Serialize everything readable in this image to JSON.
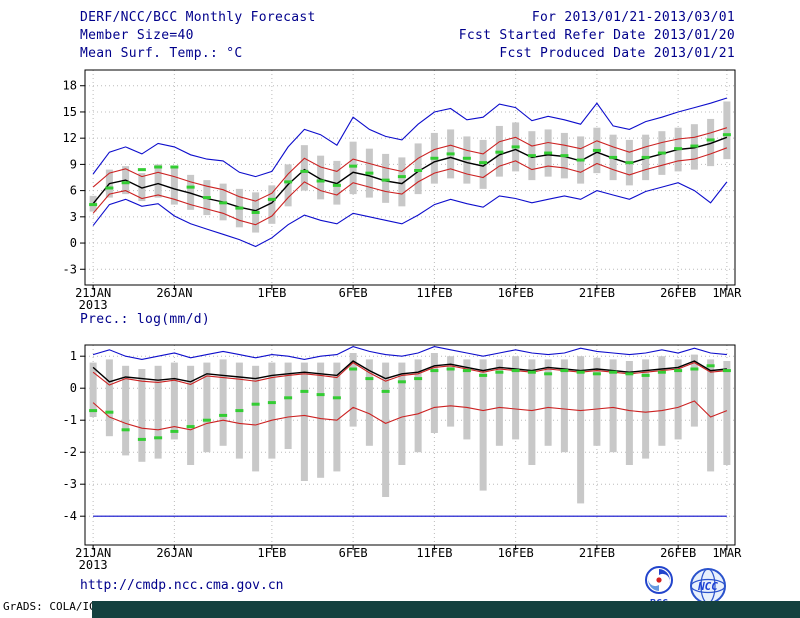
{
  "header": {
    "title": "DERF/NCC/BCC Monthly Forecast",
    "member_size": "Member Size=40",
    "temp_label": "Mean Surf. Temp.: °C",
    "date_range": "For 2013/01/21-2013/03/01",
    "fcst_started": "Fcst Started Refer Date 2013/01/20",
    "fcst_produced": "Fcst Produced Date 2013/01/21"
  },
  "prec_label": "Prec.: log(mm/d)",
  "footer": {
    "url": "http://cmdp.ncc.cma.gov.cn",
    "grads_credit": "GrADS: COLA/IGES",
    "bcc_logo_label": "BCC",
    "ncc_logo_label": "NCC"
  },
  "colors": {
    "envelope": "#0d0dcc",
    "quartile": "#cc2222",
    "mean": "#000000",
    "median": "#33cc33",
    "spread_bar": "#c8c8c8",
    "grid": "#bbbbbb",
    "text": "#00008b"
  },
  "chart_data": [
    {
      "id": "temperature",
      "type": "line",
      "title": "Mean Surf. Temp.: °C",
      "x_year": "2013",
      "n_points": 40,
      "ylim": [
        -4.8,
        19.8
      ],
      "yticks": [
        -3,
        0,
        3,
        6,
        9,
        12,
        15,
        18
      ],
      "grid": true,
      "legend": "none",
      "x_ticks": [
        {
          "index": 0,
          "label": "21JAN"
        },
        {
          "index": 5,
          "label": "26JAN"
        },
        {
          "index": 11,
          "label": "1FEB"
        },
        {
          "index": 16,
          "label": "6FEB"
        },
        {
          "index": 21,
          "label": "11FEB"
        },
        {
          "index": 26,
          "label": "16FEB"
        },
        {
          "index": 31,
          "label": "21FEB"
        },
        {
          "index": 36,
          "label": "26FEB"
        },
        {
          "index": 39,
          "label": "1MAR"
        }
      ],
      "series": [
        {
          "name": "ensemble-max",
          "color": "#0d0dcc",
          "width": 1.1,
          "values": [
            7.9,
            10.4,
            11.0,
            10.2,
            11.4,
            11.0,
            10.1,
            9.6,
            9.4,
            8.1,
            7.6,
            8.2,
            11.0,
            13.0,
            12.4,
            11.2,
            14.4,
            13.0,
            12.2,
            11.8,
            13.6,
            15.0,
            15.4,
            14.1,
            14.4,
            15.9,
            15.5,
            14.0,
            14.5,
            14.1,
            13.6,
            16.0,
            13.4,
            13.0,
            13.9,
            14.4,
            15.0,
            15.5,
            16.0,
            16.6
          ]
        },
        {
          "name": "ensemble-min",
          "color": "#0d0dcc",
          "width": 1.1,
          "values": [
            2.0,
            4.4,
            5.0,
            4.2,
            4.5,
            3.1,
            2.2,
            1.6,
            1.0,
            0.4,
            -0.4,
            0.6,
            2.1,
            3.2,
            2.6,
            2.2,
            3.4,
            3.0,
            2.6,
            2.2,
            3.2,
            4.4,
            5.0,
            4.5,
            4.1,
            5.4,
            5.1,
            4.6,
            5.0,
            5.4,
            5.0,
            6.0,
            5.5,
            5.0,
            5.9,
            6.4,
            6.9,
            6.0,
            4.6,
            7.0
          ]
        },
        {
          "name": "upper-quartile",
          "color": "#cc2222",
          "width": 1.1,
          "values": [
            6.4,
            8.0,
            8.5,
            7.6,
            8.1,
            7.6,
            7.0,
            6.5,
            6.1,
            5.3,
            4.8,
            5.7,
            7.9,
            9.7,
            8.7,
            8.2,
            9.6,
            9.1,
            8.6,
            8.2,
            9.7,
            10.7,
            11.2,
            10.6,
            10.2,
            11.6,
            12.1,
            11.1,
            11.5,
            11.2,
            10.8,
            11.7,
            11.0,
            10.4,
            11.0,
            11.5,
            11.9,
            12.1,
            12.6,
            13.2
          ]
        },
        {
          "name": "lower-quartile",
          "color": "#cc2222",
          "width": 1.1,
          "values": [
            3.4,
            5.6,
            6.0,
            5.1,
            5.5,
            5.0,
            4.4,
            3.9,
            3.4,
            2.6,
            2.1,
            3.1,
            5.2,
            7.0,
            6.0,
            5.5,
            6.9,
            6.4,
            5.9,
            5.6,
            7.0,
            8.0,
            8.5,
            7.9,
            7.5,
            8.8,
            9.4,
            8.4,
            8.8,
            8.6,
            8.1,
            9.1,
            8.4,
            7.8,
            8.4,
            8.9,
            9.4,
            9.6,
            10.2,
            10.9
          ]
        },
        {
          "name": "ensemble-mean",
          "color": "#000000",
          "width": 1.4,
          "values": [
            4.5,
            6.8,
            7.2,
            6.3,
            6.8,
            6.2,
            5.7,
            5.1,
            4.7,
            4.1,
            3.7,
            4.6,
            6.7,
            8.4,
            7.3,
            6.8,
            8.1,
            7.7,
            7.1,
            6.8,
            8.2,
            9.3,
            9.8,
            9.2,
            8.8,
            10.1,
            10.7,
            9.8,
            10.1,
            9.9,
            9.4,
            10.4,
            9.7,
            9.1,
            9.7,
            10.2,
            10.7,
            10.9,
            11.4,
            12.1
          ]
        }
      ],
      "markers": {
        "name": "ensemble-median",
        "color": "#33cc33",
        "values": [
          4.4,
          6.3,
          6.9,
          8.4,
          8.7,
          8.7,
          6.4,
          5.2,
          4.6,
          4.0,
          3.5,
          5.0,
          7.0,
          8.2,
          7.1,
          6.6,
          8.8,
          8.0,
          7.2,
          7.6,
          8.3,
          9.7,
          10.2,
          9.7,
          9.2,
          10.4,
          11.0,
          10.0,
          10.3,
          10.0,
          9.5,
          10.6,
          9.8,
          9.2,
          9.8,
          10.3,
          10.8,
          11.1,
          11.8,
          12.4
        ]
      },
      "bars": {
        "name": "ensemble-spread",
        "color": "#c8c8c8",
        "min": [
          3.6,
          5.2,
          5.6,
          4.8,
          5.2,
          4.4,
          3.8,
          3.2,
          2.6,
          1.8,
          1.2,
          2.2,
          4.2,
          6.0,
          5.0,
          4.4,
          5.6,
          5.2,
          4.6,
          4.2,
          5.6,
          6.8,
          7.4,
          6.8,
          6.2,
          7.6,
          8.2,
          7.2,
          7.6,
          7.4,
          6.8,
          8.0,
          7.2,
          6.6,
          7.2,
          7.8,
          8.2,
          8.4,
          8.8,
          9.6
        ],
        "max": [
          5.4,
          8.4,
          8.8,
          8.0,
          9.0,
          8.6,
          7.8,
          7.2,
          6.8,
          6.2,
          5.8,
          6.6,
          9.0,
          11.2,
          10.0,
          9.4,
          11.6,
          10.8,
          10.2,
          9.8,
          11.4,
          12.6,
          13.0,
          12.2,
          11.8,
          13.4,
          13.8,
          12.8,
          13.0,
          12.6,
          12.2,
          13.2,
          12.4,
          11.8,
          12.4,
          12.8,
          13.2,
          13.6,
          14.2,
          16.2
        ]
      }
    },
    {
      "id": "precipitation",
      "type": "line",
      "title": "Prec.: log(mm/d)",
      "x_year": "2013",
      "n_points": 40,
      "ylim": [
        -4.9,
        1.35
      ],
      "yticks": [
        -4,
        -3,
        -2,
        -1,
        0,
        1
      ],
      "grid": true,
      "legend": "none",
      "x_ticks": [
        {
          "index": 0,
          "label": "21JAN"
        },
        {
          "index": 5,
          "label": "26JAN"
        },
        {
          "index": 11,
          "label": "1FEB"
        },
        {
          "index": 16,
          "label": "6FEB"
        },
        {
          "index": 21,
          "label": "11FEB"
        },
        {
          "index": 26,
          "label": "16FEB"
        },
        {
          "index": 31,
          "label": "21FEB"
        },
        {
          "index": 36,
          "label": "26FEB"
        },
        {
          "index": 39,
          "label": "1MAR"
        }
      ],
      "series": [
        {
          "name": "ensemble-max",
          "color": "#0d0dcc",
          "width": 1.1,
          "values": [
            1.05,
            1.2,
            1.0,
            0.9,
            1.0,
            1.1,
            0.95,
            1.05,
            1.15,
            1.05,
            0.95,
            1.05,
            1.0,
            0.9,
            1.0,
            1.05,
            1.3,
            1.15,
            1.05,
            1.0,
            1.1,
            1.3,
            1.2,
            1.1,
            1.0,
            1.1,
            1.2,
            1.1,
            1.05,
            1.1,
            1.25,
            1.15,
            1.1,
            1.05,
            1.1,
            1.2,
            1.1,
            1.25,
            1.1,
            1.05
          ]
        },
        {
          "name": "ensemble-min",
          "color": "#0d0dcc",
          "width": 1.1,
          "values": [
            -4,
            -4,
            -4,
            -4,
            -4,
            -4,
            -4,
            -4,
            -4,
            -4,
            -4,
            -4,
            -4,
            -4,
            -4,
            -4,
            -4,
            -4,
            -4,
            -4,
            -4,
            -4,
            -4,
            -4,
            -4,
            -4,
            -4,
            -4,
            -4,
            -4,
            -4,
            -4,
            -4,
            -4,
            -4,
            -4,
            -4,
            -4,
            -4,
            -4
          ]
        },
        {
          "name": "upper-quartile",
          "color": "#cc2222",
          "width": 1.1,
          "values": [
            0.5,
            0.1,
            0.3,
            0.22,
            0.18,
            0.25,
            0.12,
            0.38,
            0.33,
            0.28,
            0.22,
            0.33,
            0.4,
            0.45,
            0.4,
            0.33,
            0.8,
            0.48,
            0.22,
            0.4,
            0.45,
            0.65,
            0.7,
            0.6,
            0.5,
            0.6,
            0.55,
            0.5,
            0.6,
            0.55,
            0.5,
            0.55,
            0.5,
            0.45,
            0.5,
            0.55,
            0.6,
            0.8,
            0.5,
            0.55
          ]
        },
        {
          "name": "lower-quartile",
          "color": "#cc2222",
          "width": 1.1,
          "values": [
            -0.45,
            -0.9,
            -1.1,
            -1.25,
            -1.3,
            -1.2,
            -1.3,
            -1.1,
            -1.0,
            -1.1,
            -1.15,
            -1.0,
            -0.9,
            -0.85,
            -0.95,
            -1.0,
            -0.6,
            -0.8,
            -1.1,
            -0.9,
            -0.8,
            -0.6,
            -0.55,
            -0.6,
            -0.7,
            -0.6,
            -0.65,
            -0.7,
            -0.6,
            -0.65,
            -0.7,
            -0.65,
            -0.6,
            -0.7,
            -0.75,
            -0.7,
            -0.6,
            -0.4,
            -0.9,
            -0.7
          ]
        },
        {
          "name": "ensemble-mean",
          "color": "#000000",
          "width": 1.4,
          "values": [
            0.65,
            0.2,
            0.35,
            0.3,
            0.25,
            0.3,
            0.2,
            0.45,
            0.4,
            0.35,
            0.3,
            0.4,
            0.45,
            0.5,
            0.45,
            0.4,
            0.85,
            0.55,
            0.3,
            0.45,
            0.5,
            0.7,
            0.75,
            0.65,
            0.55,
            0.65,
            0.6,
            0.55,
            0.65,
            0.6,
            0.55,
            0.6,
            0.55,
            0.5,
            0.55,
            0.6,
            0.65,
            0.85,
            0.55,
            0.6
          ]
        }
      ],
      "markers": {
        "name": "ensemble-median",
        "color": "#33cc33",
        "values": [
          -0.7,
          -0.75,
          -1.3,
          -1.6,
          -1.55,
          -1.35,
          -1.2,
          -1.0,
          -0.85,
          -0.7,
          -0.5,
          -0.45,
          -0.3,
          -0.1,
          -0.2,
          -0.3,
          0.6,
          0.3,
          -0.1,
          0.2,
          0.3,
          0.55,
          0.6,
          0.55,
          0.4,
          0.5,
          0.55,
          0.5,
          0.45,
          0.55,
          0.5,
          0.45,
          0.5,
          0.45,
          0.4,
          0.5,
          0.55,
          0.6,
          0.7,
          0.55
        ]
      },
      "bars": {
        "name": "ensemble-spread",
        "color": "#c8c8c8",
        "min": [
          -0.9,
          -1.5,
          -2.1,
          -2.3,
          -2.2,
          -1.6,
          -2.4,
          -2.0,
          -1.8,
          -2.2,
          -2.6,
          -2.2,
          -1.9,
          -2.9,
          -2.8,
          -2.6,
          -1.2,
          -1.8,
          -3.4,
          -2.4,
          -2.0,
          -1.4,
          -1.2,
          -1.6,
          -3.2,
          -1.8,
          -1.6,
          -2.4,
          -1.8,
          -2.0,
          -3.6,
          -1.8,
          -2.0,
          -2.4,
          -2.2,
          -1.8,
          -1.6,
          -1.2,
          -2.6,
          -2.4
        ],
        "max": [
          0.8,
          0.9,
          0.7,
          0.6,
          0.7,
          0.8,
          0.7,
          0.8,
          0.9,
          0.8,
          0.7,
          0.8,
          0.8,
          0.8,
          0.8,
          0.8,
          1.1,
          0.9,
          0.8,
          0.8,
          0.9,
          1.1,
          1.0,
          0.9,
          0.9,
          0.9,
          1.0,
          0.9,
          0.9,
          0.9,
          1.0,
          0.95,
          0.9,
          0.85,
          0.9,
          1.0,
          0.9,
          1.05,
          0.9,
          0.85
        ]
      }
    }
  ]
}
